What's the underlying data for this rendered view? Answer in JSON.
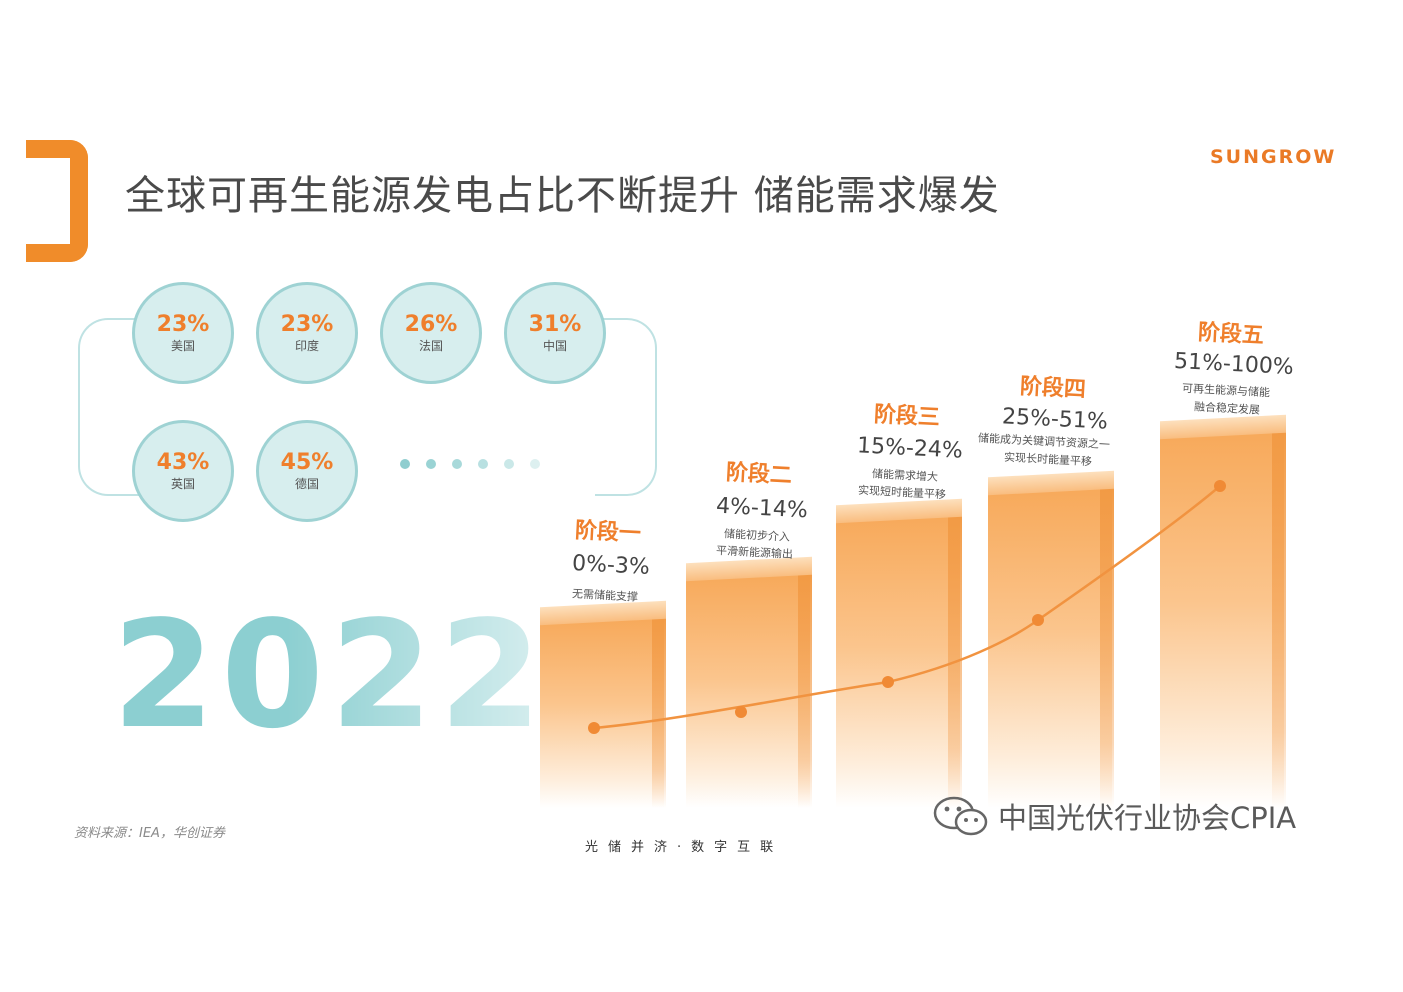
{
  "header": {
    "title": "全球可再生能源发电占比不断提升 储能需求爆发",
    "logo_text": "SUNGROW"
  },
  "shares": [
    {
      "pct": "23%",
      "country": "美国"
    },
    {
      "pct": "23%",
      "country": "印度"
    },
    {
      "pct": "26%",
      "country": "法国"
    },
    {
      "pct": "31%",
      "country": "中国"
    },
    {
      "pct": "43%",
      "country": "英国"
    },
    {
      "pct": "45%",
      "country": "德国"
    }
  ],
  "year": "2022",
  "stages": [
    {
      "name": "阶段一",
      "range": "0%-3%",
      "desc": [
        "无需储能支撑"
      ]
    },
    {
      "name": "阶段二",
      "range": "4%-14%",
      "desc": [
        "储能初步介入",
        "平滑新能源输出"
      ]
    },
    {
      "name": "阶段三",
      "range": "15%-24%",
      "desc": [
        "储能需求增大",
        "实现短时能量平移"
      ]
    },
    {
      "name": "阶段四",
      "range": "25%-51%",
      "desc": [
        "储能成为关键调节资源之一",
        "实现长时能量平移"
      ]
    },
    {
      "name": "阶段五",
      "range": "51%-100%",
      "desc": [
        "可再生能源与储能",
        "融合稳定发展"
      ]
    }
  ],
  "footer": {
    "source": "资料来源：IEA，华创证券",
    "slogan": "光储并济·数字互联",
    "watermark": "中国光伏行业协会CPIA"
  },
  "colors": {
    "accent_orange": "#ef7f2c",
    "teal": "#9ed2d3",
    "year_teal": "#8ccfd1"
  }
}
